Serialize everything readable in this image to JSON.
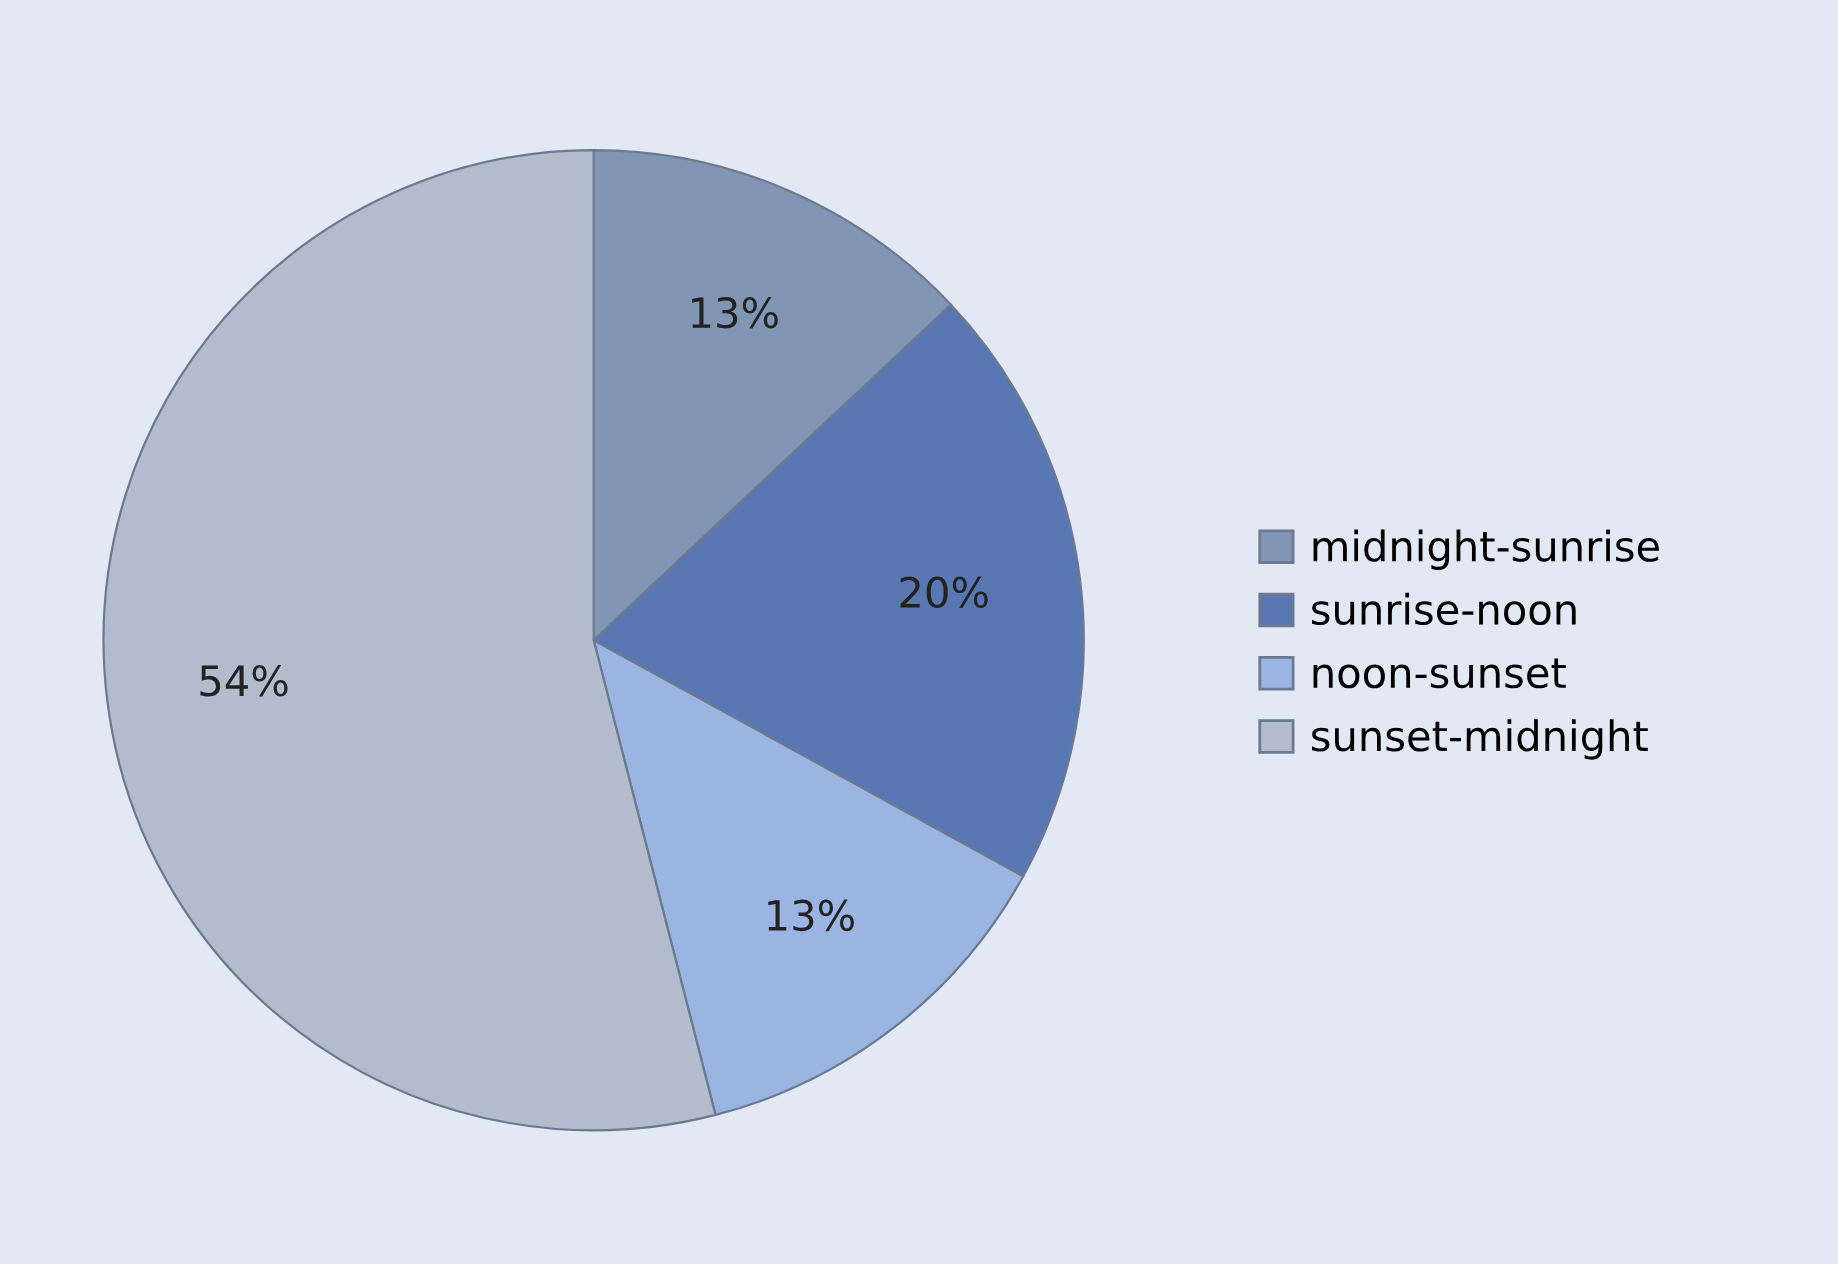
{
  "chart_data": {
    "type": "pie",
    "categories": [
      "midnight-sunrise",
      "sunrise-noon",
      "noon-sunset",
      "sunset-midnight"
    ],
    "values": [
      13,
      20,
      13,
      54
    ],
    "colors": [
      "#8096b4",
      "#5877b3",
      "#9bb5e2",
      "#b3bccc"
    ],
    "value_labels": [
      "13%",
      "20%",
      "13%",
      "54%"
    ],
    "legend": "right"
  }
}
